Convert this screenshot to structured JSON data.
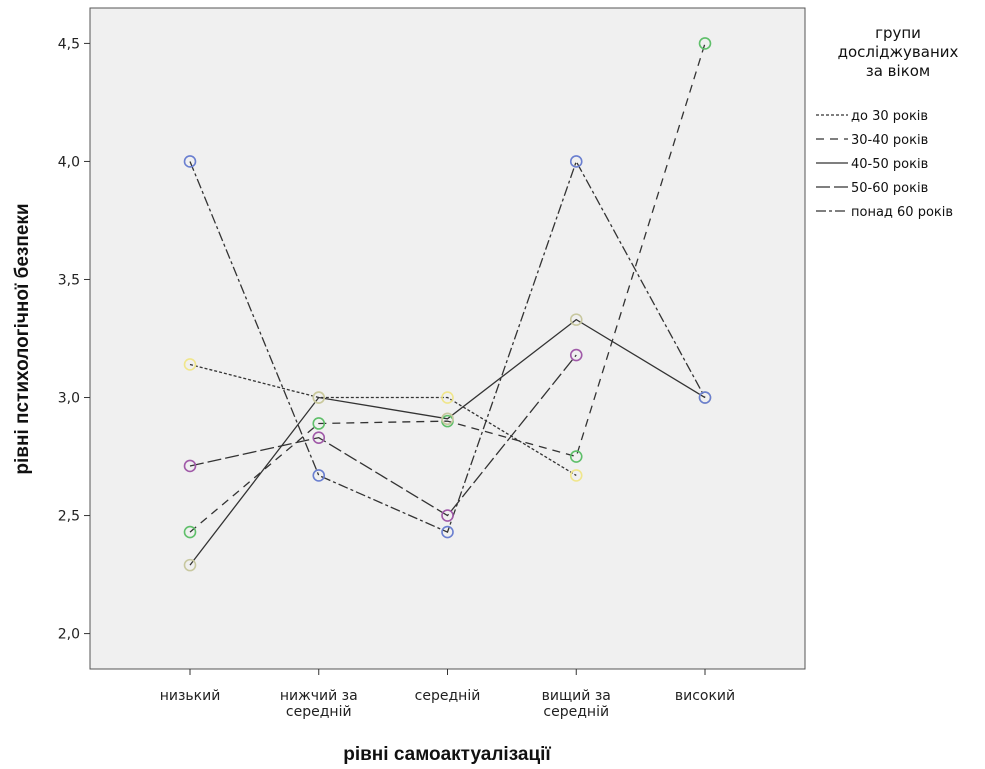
{
  "chart_data": {
    "type": "line",
    "xlabel": "рівні самоактуалізації",
    "ylabel": "рівні пстихологічної безпеки",
    "categories": [
      "низький",
      "нижчий за\nсередній",
      "середній",
      "вищий за\nсередній",
      "високий"
    ],
    "ylim": [
      1.85,
      4.65
    ],
    "yticks": [
      2.0,
      2.5,
      3.0,
      3.5,
      4.0,
      4.5
    ],
    "ytick_labels": [
      "2,0",
      "2,5",
      "3,0",
      "3,5",
      "4,0",
      "4,5"
    ],
    "grid": false,
    "background": "#f0f0f0",
    "legend": {
      "title": "групи\nдосліджуваних\nза віком",
      "placement": "right"
    },
    "series": [
      {
        "name": "до 30 років",
        "dash": "3,2",
        "marker_color": "#f0e68c",
        "values": [
          3.14,
          3.0,
          3.0,
          2.67,
          null
        ]
      },
      {
        "name": "30-40 років",
        "dash": "8,6",
        "marker_color": "#5fbf6a",
        "values": [
          2.43,
          2.89,
          2.9,
          2.75,
          4.5
        ]
      },
      {
        "name": "40-50 років",
        "dash": "",
        "marker_color": "#c8c8a0",
        "values": [
          2.29,
          3.0,
          2.91,
          3.33,
          3.0
        ]
      },
      {
        "name": "50-60 років",
        "dash": "14,4",
        "marker_color": "#a05aa8",
        "values": [
          2.71,
          2.83,
          2.5,
          3.18,
          null
        ]
      },
      {
        "name": "понад 60 років",
        "dash": "10,3,3,3",
        "marker_color": "#6a7fd0",
        "values": [
          4.0,
          2.67,
          2.43,
          4.0,
          3.0
        ]
      }
    ]
  }
}
